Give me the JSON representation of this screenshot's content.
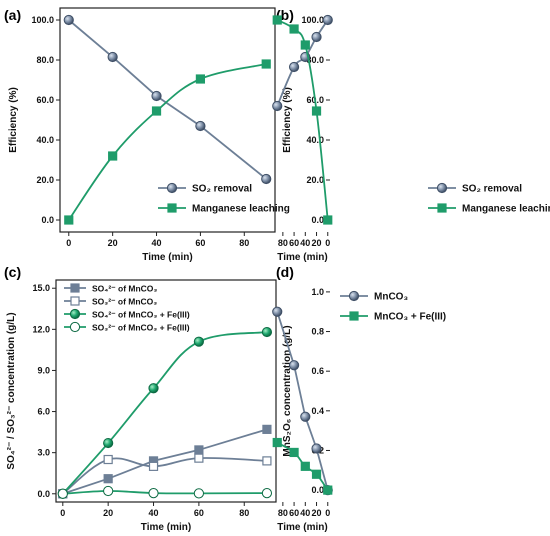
{
  "chart_data": [
    {
      "panel_label": "(a)",
      "type": "line",
      "xlabel": "Time (min)",
      "ylabel": "Efficiency (%)",
      "xlim": [
        -4,
        94
      ],
      "ylim": [
        -6,
        106
      ],
      "xticks": [
        0,
        20,
        40,
        60,
        80
      ],
      "yticks": [
        0,
        20,
        40,
        60,
        80,
        100
      ],
      "ytick_labels": [
        "0.0",
        "20.0",
        "40.0",
        "60.0",
        "80.0",
        "100.0"
      ],
      "xtick_labels": [
        "0",
        "20",
        "40",
        "60",
        "80"
      ],
      "legend_position": "bottom-right",
      "series": [
        {
          "name": "SO₂ removal",
          "color": "#6d7f96",
          "marker": "circle",
          "smooth": false,
          "x": [
            0,
            20,
            40,
            60,
            90
          ],
          "values": [
            100,
            81.5,
            62,
            47,
            20.5
          ]
        },
        {
          "name": "Manganese leaching",
          "color": "#1f9c6a",
          "marker": "square",
          "smooth": true,
          "x": [
            0,
            20,
            40,
            60,
            90
          ],
          "values": [
            0,
            32,
            54.5,
            70.5,
            78
          ]
        }
      ]
    },
    {
      "panel_label": "(b)",
      "type": "line",
      "xlabel": "Time (min)",
      "ylabel": "Efficiency (%)",
      "xlim": [
        -4,
        94
      ],
      "ylim": [
        -6,
        106
      ],
      "xticks": [
        0,
        20,
        40,
        60,
        80
      ],
      "yticks": [
        0,
        20,
        40,
        60,
        80,
        100
      ],
      "ytick_labels": [
        "0.0",
        "20.0",
        "40.0",
        "60.0",
        "80.0",
        "100.0"
      ],
      "xtick_labels": [
        "0",
        "20",
        "40",
        "60",
        "80"
      ],
      "legend_position": "bottom-right",
      "series": [
        {
          "name": "SO₂ removal",
          "color": "#6d7f96",
          "marker": "circle",
          "smooth": true,
          "x": [
            0,
            20,
            40,
            60,
            90
          ],
          "values": [
            100,
            91.5,
            81.5,
            76.5,
            57
          ]
        },
        {
          "name": "Manganese leaching",
          "color": "#1f9c6a",
          "marker": "square",
          "smooth": true,
          "x": [
            0,
            20,
            40,
            60,
            90
          ],
          "values": [
            0,
            54.5,
            87.5,
            95.5,
            100
          ]
        }
      ]
    },
    {
      "panel_label": "(c)",
      "type": "line",
      "xlabel": "Time (min)",
      "ylabel": "SO₄²⁻ / SO₃²⁻ concentration (g/L)",
      "xlim": [
        -3,
        94
      ],
      "ylim": [
        -0.6,
        15.6
      ],
      "xticks": [
        0,
        20,
        40,
        60,
        80
      ],
      "yticks": [
        0,
        3,
        6,
        9,
        12,
        15
      ],
      "ytick_labels": [
        "0.0",
        "3.0",
        "6.0",
        "9.0",
        "12.0",
        "15.0"
      ],
      "xtick_labels": [
        "0",
        "20",
        "40",
        "60",
        "80"
      ],
      "legend_position": "top-left",
      "series": [
        {
          "name": "SO₄²⁻ of MnCO₃",
          "color": "#6d7f96",
          "marker": "square",
          "filled": true,
          "smooth": false,
          "x": [
            0,
            20,
            40,
            60,
            90
          ],
          "values": [
            0,
            1.1,
            2.4,
            3.2,
            4.7
          ]
        },
        {
          "name": "SO₃²⁻ of MnCO₃",
          "color": "#6d7f96",
          "marker": "square",
          "filled": false,
          "smooth": true,
          "x": [
            0,
            20,
            40,
            60,
            90
          ],
          "values": [
            0,
            2.5,
            2.0,
            2.6,
            2.4
          ]
        },
        {
          "name": "SO₄²⁻ of MnCO₃ + Fe(III)",
          "color": "#1f9c6a",
          "marker": "circle",
          "filled": true,
          "smooth": true,
          "x": [
            0,
            20,
            40,
            60,
            90
          ],
          "values": [
            0,
            3.7,
            7.7,
            11.1,
            11.8
          ]
        },
        {
          "name": "SO₃²⁻ of MnCO₃ + Fe(III)",
          "color": "#1f9c6a",
          "marker": "circle",
          "filled": false,
          "smooth": true,
          "x": [
            0,
            20,
            40,
            60,
            90
          ],
          "values": [
            0,
            0.2,
            0.05,
            0.03,
            0.05
          ]
        }
      ]
    },
    {
      "panel_label": "(d)",
      "type": "line",
      "xlabel": "Time (min)",
      "ylabel": "MnS₂O₆ concentration (g/L)",
      "xlim": [
        -4,
        94
      ],
      "ylim": [
        -0.06,
        1.06
      ],
      "xticks": [
        0,
        20,
        40,
        60,
        80
      ],
      "yticks": [
        0,
        0.2,
        0.4,
        0.6,
        0.8,
        1.0
      ],
      "ytick_labels": [
        "0.0",
        "0.2",
        "0.4",
        "0.6",
        "0.8",
        "1.0"
      ],
      "xtick_labels": [
        "0",
        "20",
        "40",
        "60",
        "80"
      ],
      "legend_position": "top-left",
      "series": [
        {
          "name": "MnCO₃",
          "color": "#6d7f96",
          "marker": "circle",
          "smooth": false,
          "x": [
            0,
            20,
            40,
            60,
            90
          ],
          "values": [
            0,
            0.21,
            0.37,
            0.63,
            0.9
          ]
        },
        {
          "name": "MnCO₃ + Fe(III)",
          "color": "#1f9c6a",
          "marker": "square",
          "smooth": true,
          "x": [
            0,
            20,
            40,
            60,
            90
          ],
          "values": [
            0,
            0.08,
            0.12,
            0.19,
            0.24
          ]
        }
      ]
    }
  ]
}
